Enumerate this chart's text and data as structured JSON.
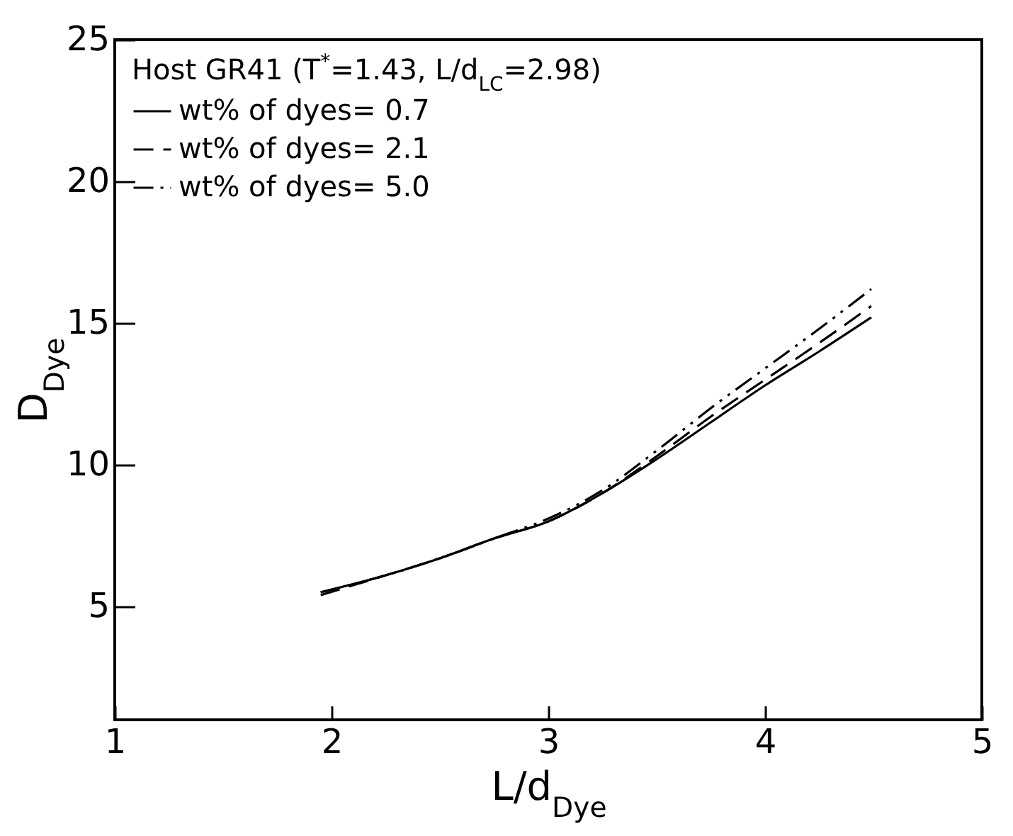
{
  "chart_data": {
    "type": "line",
    "xlabel": "L/d$_{Dye}$",
    "ylabel": "D$_{Dye}$",
    "legend_title": "Host GR41 (T$^{*}$=1.43, L/d$_{LC}$=2.98)",
    "xlim": [
      1,
      5
    ],
    "xticks": [
      1,
      2,
      3,
      4,
      5
    ],
    "ylim": [
      1,
      25
    ],
    "yticks": [
      5,
      10,
      15,
      20,
      25
    ],
    "grid": false,
    "legend": "top left",
    "marker": "none",
    "series": [
      {
        "name": "wt% of dyes= 0.7",
        "color": "#000000",
        "line_style": "solid",
        "x": [
          1.95,
          2.25,
          2.5,
          2.75,
          3,
          3.25,
          3.5,
          3.75,
          4,
          4.25,
          4.49
        ],
        "values": [
          5.5,
          6.1,
          6.7,
          7.4,
          8.0,
          9.0,
          10.2,
          11.5,
          12.8,
          14.0,
          15.2
        ]
      },
      {
        "name": "wt% of dyes= 2.1",
        "color": "#000000",
        "line_style": "dashed",
        "x": [
          1.95,
          2.25,
          2.5,
          2.75,
          3,
          3.25,
          3.5,
          3.75,
          4,
          4.25,
          4.49
        ],
        "values": [
          5.4,
          6.1,
          6.7,
          7.4,
          8.0,
          9.0,
          10.3,
          11.7,
          13.0,
          14.3,
          15.6
        ]
      },
      {
        "name": "wt% of dyes= 5.0",
        "color": "#000000",
        "line_style": "dashdot",
        "x": [
          1.95,
          2.25,
          2.5,
          2.75,
          3,
          3.25,
          3.5,
          3.75,
          4,
          4.25,
          4.49
        ],
        "values": [
          5.5,
          6.1,
          6.7,
          7.4,
          8.1,
          9.1,
          10.5,
          12.0,
          13.4,
          14.8,
          16.2
        ]
      }
    ]
  }
}
